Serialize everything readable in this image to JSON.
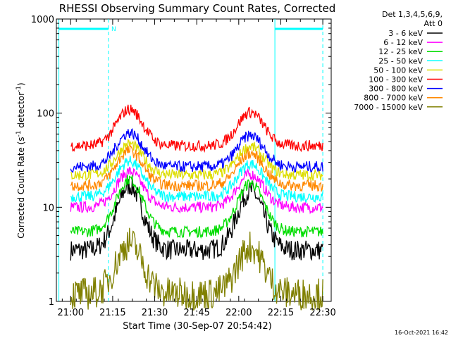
{
  "chart_data": {
    "type": "line",
    "title": "RHESSI Observing Summary Count Rates, Corrected",
    "xlabel": "Start Time (30-Sep-07 20:54:42)",
    "ylabel": "Corrected Count Rate (s",
    "ylabel_sup1": "-1",
    "ylabel_mid": " detector",
    "ylabel_sup2": "-1",
    "ylabel_end": ")",
    "y_scale": "log",
    "ylim": [
      1,
      1000
    ],
    "xlim_minutes": [
      20.9,
      22.55
    ],
    "x_ticks": [
      {
        "label": "21:00",
        "h": 21.0
      },
      {
        "label": "21:15",
        "h": 21.25
      },
      {
        "label": "21:30",
        "h": 21.5
      },
      {
        "label": "21:45",
        "h": 21.75
      },
      {
        "label": "22:00",
        "h": 22.0
      },
      {
        "label": "22:15",
        "h": 22.25
      },
      {
        "label": "22:30",
        "h": 22.5
      }
    ],
    "y_ticks": [
      {
        "label": "1",
        "v": 1
      },
      {
        "label": "10",
        "v": 10
      },
      {
        "label": "100",
        "v": 100
      },
      {
        "label": "1000",
        "v": 1000
      }
    ],
    "legend_header": [
      "Det 1,3,4,5,6,9,",
      "Att 0"
    ],
    "series": [
      {
        "name": "3 - 6 keV",
        "color": "#000000",
        "base": 3.5,
        "peak": 17
      },
      {
        "name": "6 - 12 keV",
        "color": "#ff00ff",
        "base": 10,
        "peak": 24
      },
      {
        "name": "12 - 25 keV",
        "color": "#00dd00",
        "base": 5.5,
        "peak": 20
      },
      {
        "name": "25 - 50 keV",
        "color": "#00ffff",
        "base": 13,
        "peak": 31
      },
      {
        "name": "50 - 100 keV",
        "color": "#dddd00",
        "base": 22,
        "peak": 47
      },
      {
        "name": "100 - 300 keV",
        "color": "#ff0000",
        "base": 45,
        "peak": 110
      },
      {
        "name": "300 - 800 keV",
        "color": "#0000ff",
        "base": 27,
        "peak": 62
      },
      {
        "name": "800 - 7000 keV",
        "color": "#ff8800",
        "base": 17,
        "peak": 40
      },
      {
        "name": "7000 - 15000 keV",
        "color": "#808000",
        "base": 1.2,
        "peak": 4.2
      }
    ],
    "night_intervals": [
      {
        "start": 20.93,
        "end": 21.225
      },
      {
        "start": 22.215,
        "end": 22.5
      }
    ],
    "night_marker": "N",
    "timestamp": "16-Oct-2021 16:42"
  }
}
